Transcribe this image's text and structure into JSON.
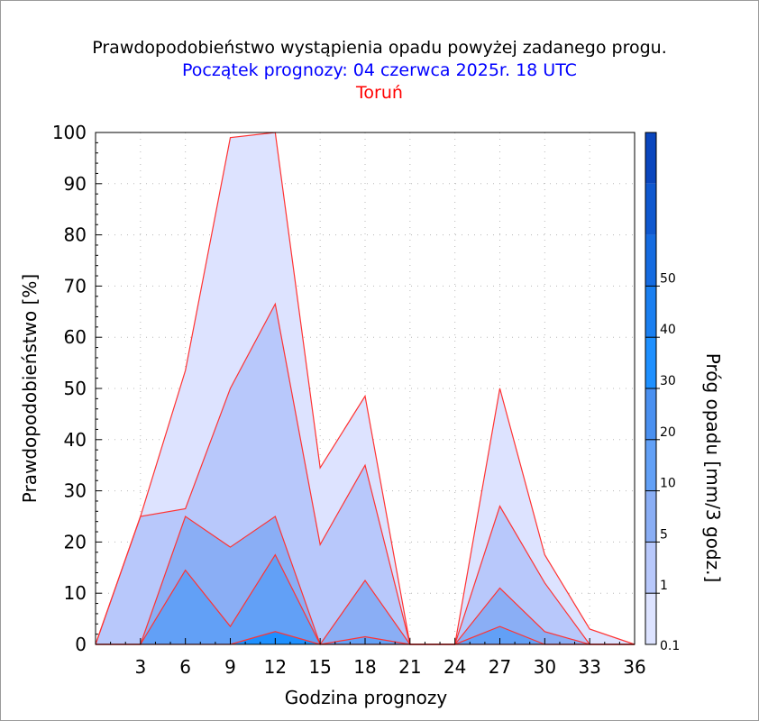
{
  "chart_data": {
    "type": "area",
    "title": "Prawdopodobieństwo wystąpienia opadu powyżej zadanego progu.",
    "subtitle": "Początek prognozy: 04 czerwca 2025r. 18 UTC",
    "station": "Toruń",
    "xlabel": "Godzina prognozy",
    "ylabel": "Prawdopodobieństwo [%]",
    "colorbar_label": "Próg opadu [mm/3 godz.]",
    "x": [
      0,
      3,
      6,
      9,
      12,
      15,
      18,
      21,
      24,
      27,
      30,
      33,
      36
    ],
    "x_ticks": [
      "3",
      "6",
      "9",
      "12",
      "15",
      "18",
      "21",
      "24",
      "27",
      "30",
      "33",
      "36"
    ],
    "xlim": [
      0,
      36
    ],
    "y_ticks": [
      "0",
      "10",
      "20",
      "30",
      "40",
      "50",
      "60",
      "70",
      "80",
      "90",
      "100"
    ],
    "ylim": [
      0,
      100
    ],
    "grid": true,
    "series": [
      {
        "name": "0.1",
        "color": "#dde3ff",
        "values": [
          0,
          25,
          53.5,
          99,
          100,
          34.5,
          48.5,
          0,
          0,
          50,
          17.5,
          3,
          0
        ]
      },
      {
        "name": "1",
        "color": "#b8c8fb",
        "values": [
          0,
          25,
          26.5,
          50,
          66.5,
          19.5,
          35,
          0,
          0,
          27,
          12,
          0,
          0
        ]
      },
      {
        "name": "5",
        "color": "#8aaef5",
        "values": [
          0,
          0,
          25,
          19,
          25,
          0,
          12.5,
          0,
          0,
          11,
          2.5,
          0,
          0
        ]
      },
      {
        "name": "10",
        "color": "#62a0f6",
        "values": [
          0,
          0,
          14.5,
          3.5,
          17.5,
          0,
          1.5,
          0,
          0,
          3.5,
          0,
          0,
          0
        ]
      },
      {
        "name": "20",
        "color": "#1e90ff",
        "values": [
          0,
          0,
          0,
          0,
          2.5,
          0,
          0,
          0,
          0,
          0,
          0,
          0,
          0
        ]
      }
    ],
    "colorbar": {
      "ticks": [
        "0.1",
        "1",
        "5",
        "10",
        "20",
        "30",
        "40",
        "50"
      ],
      "bands": [
        "#dde3ff",
        "#b8c8fb",
        "#8aaef5",
        "#62a0f6",
        "#4a90f0",
        "#1e90ff",
        "#1a7ff0",
        "#156be0",
        "#0f58cf",
        "#0a46bd"
      ]
    },
    "outline_color": "#ff3333"
  }
}
